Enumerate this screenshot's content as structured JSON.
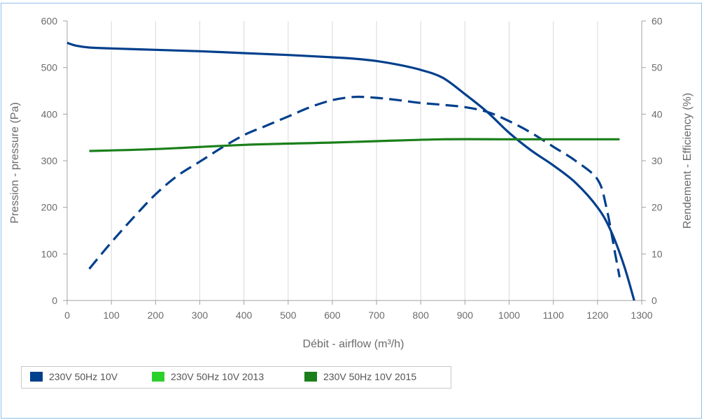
{
  "chart_data": {
    "type": "line",
    "xlabel": "Débit - airflow (m³/h)",
    "ylabel": "Pression - pressure (Pa)",
    "y2label": "Rendement - Efficiency (%)",
    "x_ticks": [
      "0",
      "100",
      "200",
      "300",
      "400",
      "500",
      "600",
      "700",
      "800",
      "900",
      "1000",
      "1100",
      "1200",
      "1300"
    ],
    "y_ticks": [
      "0",
      "100",
      "200",
      "300",
      "400",
      "500",
      "600"
    ],
    "y2_ticks": [
      "0",
      "10",
      "20",
      "30",
      "40",
      "50",
      "60"
    ],
    "xlim": [
      0,
      1300
    ],
    "ylim": [
      0,
      600
    ],
    "y2lim": [
      0,
      60
    ],
    "grid": "vertical",
    "legend_position": "bottom",
    "legend": [
      {
        "label": "230V 50Hz 10V",
        "color": "#003f8c"
      },
      {
        "label": "230V 50Hz 10V 2013",
        "color": "#2bd12b"
      },
      {
        "label": "230V 50Hz 10V 2015",
        "color": "#1a7f1a"
      }
    ],
    "series": [
      {
        "axis": "left",
        "style": "solid",
        "color": "#003f8c",
        "x": [
          0,
          20,
          50,
          100,
          200,
          300,
          400,
          500,
          600,
          650,
          700,
          750,
          800,
          850,
          900,
          950,
          1000,
          1050,
          1100,
          1150,
          1200,
          1230,
          1260,
          1283
        ],
        "y": [
          553,
          547,
          543,
          541,
          538,
          535,
          531,
          527,
          522,
          519,
          514,
          506,
          495,
          478,
          443,
          405,
          360,
          322,
          290,
          253,
          200,
          150,
          75,
          0
        ]
      },
      {
        "axis": "right",
        "style": "dashed",
        "color": "#003f8c",
        "x": [
          50,
          100,
          150,
          200,
          250,
          300,
          350,
          400,
          450,
          500,
          550,
          600,
          650,
          700,
          750,
          800,
          850,
          900,
          950,
          1000,
          1050,
          1100,
          1150,
          1200,
          1220,
          1240,
          1250
        ],
        "y": [
          6.8,
          12.5,
          17.8,
          22.8,
          26.8,
          29.8,
          32.8,
          35.5,
          37.5,
          39.5,
          41.5,
          43,
          43.7,
          43.5,
          43,
          42.4,
          42,
          41.5,
          40.5,
          38.5,
          36,
          33,
          30,
          26,
          20,
          10,
          5
        ]
      },
      {
        "axis": "right",
        "style": "solid",
        "color": "#1a7f1a",
        "x": [
          50,
          200,
          400,
          600,
          700,
          850,
          1000,
          1100,
          1250
        ],
        "y": [
          32.1,
          32.5,
          33.4,
          33.9,
          34.2,
          34.6,
          34.6,
          34.6,
          34.6
        ]
      }
    ]
  }
}
